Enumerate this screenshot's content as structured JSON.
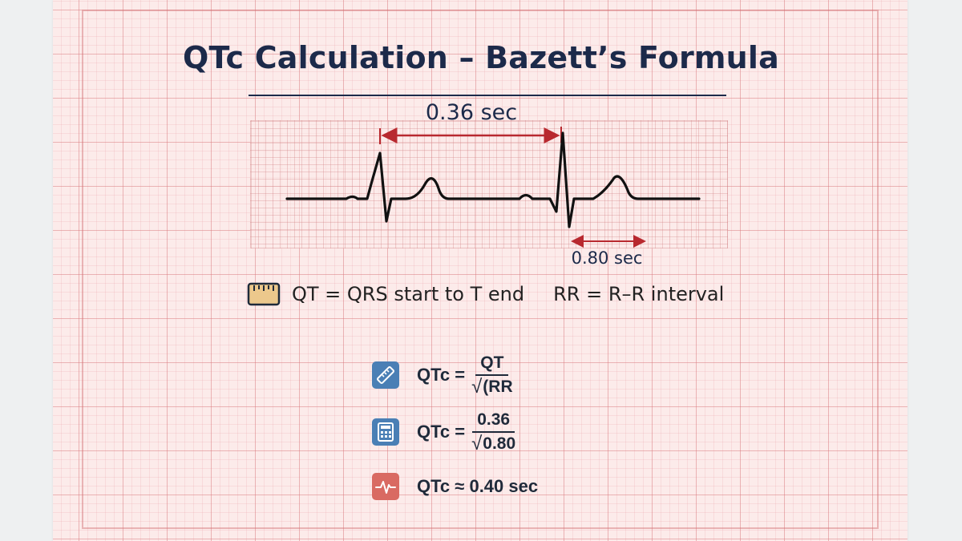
{
  "title": "QTc Calculation – Bazett’s Formula",
  "ecg": {
    "qt_label": "0.36 sec",
    "rr_label": "0.80 sec"
  },
  "legend": {
    "icon": "ruler-icon",
    "qt_text": "QT = QRS start to T end",
    "rr_text": "RR = R–R interval"
  },
  "formulas": [
    {
      "icon": "ruler-icon",
      "lhs": "QTc =",
      "numerator": "QT",
      "denominator": "(RR"
    },
    {
      "icon": "calculator-icon",
      "lhs": "QTc =",
      "numerator": "0.36",
      "denominator": "0.80"
    },
    {
      "icon": "ecg-pulse-icon",
      "result": "QTc ≈ 0.40 sec"
    }
  ],
  "colors": {
    "title": "#1c2a4a",
    "measure_arrow": "#b8292f",
    "icon_blue": "#4a7fb5",
    "icon_red": "#d96a62",
    "icon_tan": "#ecc88c"
  }
}
